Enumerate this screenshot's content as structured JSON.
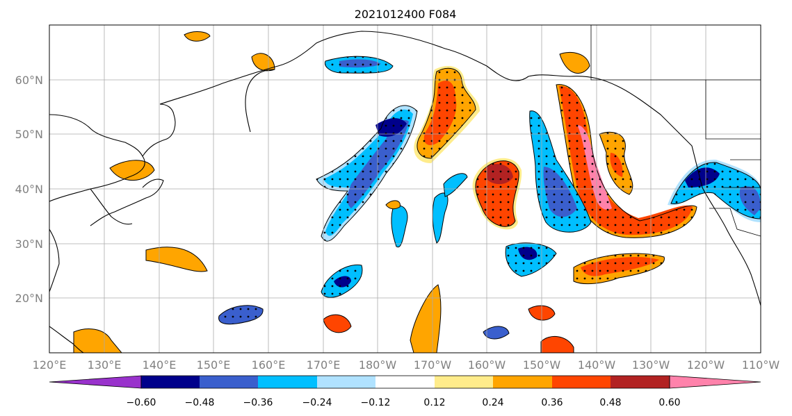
{
  "title": "2021012400 F084",
  "map": {
    "x_ticks": [
      "120°E",
      "130°E",
      "140°E",
      "150°E",
      "160°E",
      "170°E",
      "180°W",
      "170°W",
      "160°W",
      "150°W",
      "140°W",
      "130°W",
      "120°W",
      "110°W"
    ],
    "y_ticks": [
      "60°N",
      "50°N",
      "40°N",
      "30°N",
      "20°N"
    ],
    "lon_range": [
      120,
      250
    ],
    "lat_range": [
      10,
      70
    ],
    "grid": true
  },
  "colorbar": {
    "colors": [
      "#9932cc",
      "#00008b",
      "#3a5fcd",
      "#00bfff",
      "#b0e2ff",
      "#ffffff",
      "#ffec8b",
      "#ffa500",
      "#ff4500",
      "#b22222",
      "#ff82ab"
    ],
    "tick_labels": [
      "−0.60",
      "−0.48",
      "−0.36",
      "−0.24",
      "−0.12",
      "0.12",
      "0.24",
      "0.36",
      "0.48",
      "0.60"
    ],
    "extend": "both"
  }
}
